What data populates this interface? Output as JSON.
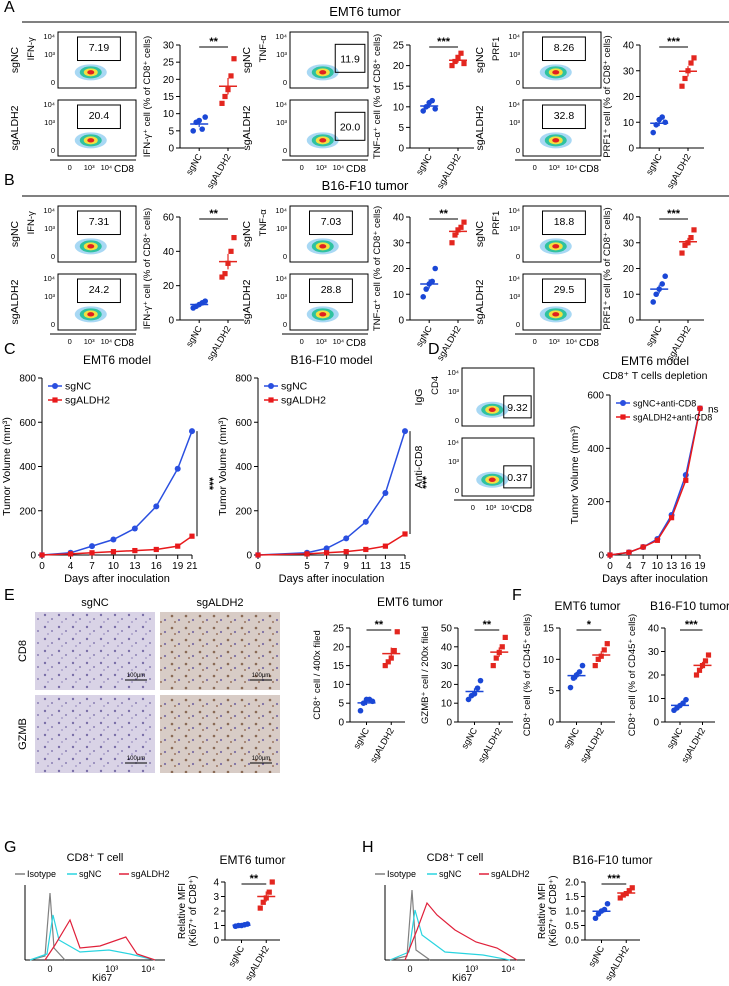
{
  "panel_A": {
    "letter": "A",
    "title": "EMT6 tumor",
    "groups": [
      {
        "flow": {
          "y_label": "IFN-γ",
          "x_label": "CD8",
          "rows": [
            "sgNC",
            "sgALDH2"
          ],
          "gates": [
            "7.19",
            "20.4"
          ],
          "yticks": [
            "10⁴",
            "10³",
            "0"
          ],
          "xticks": [
            "0",
            "10³",
            "10⁴"
          ]
        },
        "chart": {
          "type": "dot",
          "y_label": "IFN-γ⁺ cell (% of CD8⁺ cells)",
          "categories": [
            "sgNC",
            "sgALDH2"
          ],
          "colors": [
            "#1a47d6",
            "#e3261f"
          ],
          "values": [
            [
              5,
              7.5,
              8,
              5.5,
              9
            ],
            [
              13,
              15,
              17,
              21,
              26
            ]
          ],
          "means": [
            7,
            18
          ],
          "errors": [
            0.9,
            2.4
          ],
          "ylim": [
            0,
            30
          ],
          "yticks": [
            0,
            5,
            10,
            15,
            20,
            25,
            30
          ],
          "significance": "**"
        }
      },
      {
        "flow": {
          "y_label": "TNF-α",
          "x_label": "CD8",
          "rows": [
            "sgNC",
            "sgALDH2"
          ],
          "gates": [
            "11.9",
            "20.0"
          ],
          "yticks": [
            "10⁴",
            "10³",
            "0"
          ],
          "xticks": [
            "0",
            "10³",
            "10⁴"
          ]
        },
        "chart": {
          "type": "dot",
          "y_label": "TNF-α⁺ cell (% of CD8⁺ cells)",
          "categories": [
            "sgNC",
            "sgALDH2"
          ],
          "colors": [
            "#1a47d6",
            "#e3261f"
          ],
          "values": [
            [
              9,
              10,
              11,
              11.5,
              9.5
            ],
            [
              20,
              21,
              22,
              23,
              20.5
            ]
          ],
          "means": [
            10.2,
            21.3
          ],
          "errors": [
            0.5,
            0.6
          ],
          "ylim": [
            0,
            25
          ],
          "yticks": [
            0,
            5,
            10,
            15,
            20,
            25
          ],
          "significance": "***"
        }
      },
      {
        "flow": {
          "y_label": "PRF1",
          "x_label": "CD8",
          "rows": [
            "sgNC",
            "sgALDH2"
          ],
          "gates": [
            "8.26",
            "32.8"
          ],
          "yticks": [
            "10⁴",
            "10³",
            "0"
          ],
          "xticks": [
            "0",
            "10³",
            "10⁴"
          ]
        },
        "chart": {
          "type": "dot",
          "y_label": "PRF1⁺ cell (% of CD8⁺ cells)",
          "categories": [
            "sgNC",
            "sgALDH2"
          ],
          "colors": [
            "#1a47d6",
            "#e3261f"
          ],
          "values": [
            [
              6,
              9,
              11,
              12,
              10
            ],
            [
              24,
              27,
              30,
              33,
              35
            ]
          ],
          "means": [
            9.6,
            29.8
          ],
          "errors": [
            1.1,
            2
          ],
          "ylim": [
            0,
            40
          ],
          "yticks": [
            0,
            10,
            20,
            30,
            40
          ],
          "significance": "***"
        }
      }
    ]
  },
  "panel_B": {
    "letter": "B",
    "title": "B16-F10 tumor",
    "groups": [
      {
        "flow": {
          "y_label": "IFN-γ",
          "x_label": "CD8",
          "rows": [
            "sgNC",
            "sgALDH2"
          ],
          "gates": [
            "7.31",
            "24.2"
          ],
          "yticks": [
            "10⁴",
            "10³",
            "0"
          ],
          "xticks": [
            "0",
            "10³",
            "10⁴"
          ]
        },
        "chart": {
          "type": "dot",
          "y_label": "IFN-γ⁺ cell (% of CD8⁺ cells)",
          "categories": [
            "sgNC",
            "sgALDH2"
          ],
          "colors": [
            "#1a47d6",
            "#e3261f"
          ],
          "values": [
            [
              7,
              8,
              9,
              10,
              11
            ],
            [
              25,
              27,
              33,
              40,
              48
            ]
          ],
          "means": [
            9,
            34
          ],
          "errors": [
            0.8,
            4.5
          ],
          "ylim": [
            0,
            60
          ],
          "yticks": [
            0,
            20,
            40,
            60
          ],
          "significance": "**"
        }
      },
      {
        "flow": {
          "y_label": "TNF-α",
          "x_label": "CD8",
          "rows": [
            "sgNC",
            "sgALDH2"
          ],
          "gates": [
            "7.03",
            "28.8"
          ],
          "yticks": [
            "10⁴",
            "10³",
            "0"
          ],
          "xticks": [
            "0",
            "10³",
            "10⁴"
          ]
        },
        "chart": {
          "type": "dot",
          "y_label": "TNF-α⁺ cell (% of CD8⁺ cells)",
          "categories": [
            "sgNC",
            "sgALDH2"
          ],
          "colors": [
            "#1a47d6",
            "#e3261f"
          ],
          "values": [
            [
              9,
              12,
              14,
              15,
              20
            ],
            [
              30,
              33,
              35,
              36,
              38
            ]
          ],
          "means": [
            14,
            34.4
          ],
          "errors": [
            1.8,
            1.4
          ],
          "ylim": [
            0,
            40
          ],
          "yticks": [
            0,
            10,
            20,
            30,
            40
          ],
          "significance": "**"
        }
      },
      {
        "flow": {
          "y_label": "PRF1",
          "x_label": "CD8",
          "rows": [
            "sgNC",
            "sgALDH2"
          ],
          "gates": [
            "18.8",
            "29.5"
          ],
          "yticks": [
            "10⁴",
            "10³",
            "0"
          ],
          "xticks": [
            "0",
            "10³",
            "10⁴"
          ]
        },
        "chart": {
          "type": "dot",
          "y_label": "PRF1⁺ cell (% of CD8⁺ cells)",
          "categories": [
            "sgNC",
            "sgALDH2"
          ],
          "colors": [
            "#1a47d6",
            "#e3261f"
          ],
          "values": [
            [
              7,
              10,
              12,
              14,
              17
            ],
            [
              26,
              29,
              30,
              32,
              35
            ]
          ],
          "means": [
            12,
            30.4
          ],
          "errors": [
            1.7,
            1.5
          ],
          "ylim": [
            0,
            40
          ],
          "yticks": [
            0,
            10,
            20,
            30,
            40
          ],
          "significance": "***"
        }
      }
    ]
  },
  "panel_C": {
    "letter": "C",
    "charts": [
      {
        "type": "line",
        "title": "EMT6 model",
        "y_label": "Tumor Volume (mm³)",
        "x_label": "Days after inoculation",
        "x": [
          0,
          4,
          7,
          10,
          13,
          16,
          19,
          21
        ],
        "xlim": [
          0,
          21
        ],
        "xticks": [
          0,
          4,
          7,
          10,
          13,
          16,
          19,
          21
        ],
        "ylim": [
          0,
          800
        ],
        "yticks": [
          0,
          200,
          400,
          600,
          800
        ],
        "significance": "***",
        "series": [
          {
            "name": "sgNC",
            "color": "#2a4fe0",
            "values": [
              0,
              10,
              40,
              70,
              120,
              220,
              390,
              560
            ]
          },
          {
            "name": "sgALDH2",
            "color": "#e8191b",
            "values": [
              0,
              5,
              10,
              15,
              20,
              25,
              40,
              85
            ]
          }
        ]
      },
      {
        "type": "line",
        "title": "B16-F10 model",
        "y_label": "Tumor Volume (mm³)",
        "x_label": "Days after inoculation",
        "x": [
          0,
          5,
          7,
          9,
          11,
          13,
          15
        ],
        "xlim": [
          0,
          15
        ],
        "xticks": [
          0,
          5,
          7,
          9,
          11,
          13,
          15
        ],
        "ylim": [
          0,
          800
        ],
        "yticks": [
          0,
          200,
          400,
          600,
          800
        ],
        "significance": "***",
        "series": [
          {
            "name": "sgNC",
            "color": "#2a4fe0",
            "values": [
              0,
              10,
              30,
              75,
              150,
              280,
              560
            ]
          },
          {
            "name": "sgALDH2",
            "color": "#e8191b",
            "values": [
              0,
              5,
              10,
              15,
              25,
              40,
              95
            ]
          }
        ]
      }
    ]
  },
  "panel_D": {
    "letter": "D",
    "flow": {
      "y_label": "CD4",
      "x_label": "CD8",
      "rows": [
        "IgG",
        "Anti-CD8"
      ],
      "gates": [
        "9.32",
        "0.37"
      ],
      "yticks": [
        "10⁴",
        "10³",
        "0"
      ],
      "xticks": [
        "0",
        "10³",
        "10⁴"
      ]
    },
    "chart": {
      "type": "line",
      "title": "EMT6 model",
      "subtitle": "CD8⁺ T cells depletion",
      "y_label": "Tumor Volume (mm³)",
      "x_label": "Days after inoculation",
      "x": [
        0,
        4,
        7,
        10,
        13,
        16,
        19
      ],
      "xlim": [
        0,
        19
      ],
      "xticks": [
        0,
        4,
        7,
        10,
        13,
        16,
        19
      ],
      "ylim": [
        0,
        600
      ],
      "yticks": [
        0,
        200,
        400,
        600
      ],
      "significance": "ns",
      "series": [
        {
          "name": "sgNC+anti-CD8",
          "color": "#2a4fe0",
          "values": [
            0,
            10,
            30,
            60,
            150,
            300,
            550
          ]
        },
        {
          "name": "sgALDH2+anti-CD8",
          "color": "#e8191b",
          "values": [
            0,
            10,
            30,
            55,
            140,
            280,
            550
          ]
        }
      ]
    }
  },
  "panel_E": {
    "letter": "E",
    "columns": [
      "sgNC",
      "sgALDH2"
    ],
    "rows": [
      "CD8",
      "GZMB"
    ],
    "scale_bar": "100μm",
    "title": "EMT6 tumor",
    "charts": [
      {
        "type": "dot",
        "y_label": "CD8⁺ cell / 400x filed",
        "categories": [
          "sgNC",
          "sgALDH2"
        ],
        "colors": [
          "#1a47d6",
          "#e3261f"
        ],
        "values": [
          [
            3,
            5,
            6,
            6,
            5.5
          ],
          [
            15,
            16,
            17,
            19,
            24
          ]
        ],
        "means": [
          5.1,
          18.2
        ],
        "errors": [
          0.6,
          1.6
        ],
        "ylim": [
          0,
          25
        ],
        "yticks": [
          0,
          5,
          10,
          15,
          20,
          25
        ],
        "significance": "**"
      },
      {
        "type": "dot",
        "y_label": "GZMB⁺ cell / 200x filed",
        "categories": [
          "sgNC",
          "sgALDH2"
        ],
        "colors": [
          "#1a47d6",
          "#e3261f"
        ],
        "values": [
          [
            12,
            14,
            15,
            18,
            22
          ],
          [
            30,
            34,
            37,
            40,
            45
          ]
        ],
        "means": [
          16.2,
          37.2
        ],
        "errors": [
          1.7,
          2.5
        ],
        "ylim": [
          0,
          50
        ],
        "yticks": [
          0,
          10,
          20,
          30,
          40,
          50
        ],
        "significance": "**"
      }
    ]
  },
  "panel_F": {
    "letter": "F",
    "charts": [
      {
        "type": "dot",
        "title": "EMT6 tumor",
        "y_label": "CD8⁺ cell (% of CD45⁺ cells)",
        "categories": [
          "sgNC",
          "sgALDH2"
        ],
        "colors": [
          "#1a47d6",
          "#e3261f"
        ],
        "values": [
          [
            5.5,
            7,
            7.5,
            8,
            9
          ],
          [
            9,
            10,
            10.5,
            11.5,
            12.5
          ]
        ],
        "means": [
          7.4,
          10.7
        ],
        "errors": [
          0.6,
          0.6
        ],
        "ylim": [
          0,
          15
        ],
        "yticks": [
          0,
          5,
          10,
          15
        ],
        "significance": "*"
      },
      {
        "type": "dot",
        "title": "B16-F10 tumor",
        "y_label": "CD8⁺ cell (% of CD45⁺ cells)",
        "categories": [
          "sgNC",
          "sgALDH2"
        ],
        "colors": [
          "#1a47d6",
          "#e3261f"
        ],
        "values": [
          [
            5,
            6,
            7,
            8,
            9.5
          ],
          [
            20,
            22,
            24,
            26,
            28.5
          ]
        ],
        "means": [
          7.1,
          24.1
        ],
        "errors": [
          0.8,
          1.5
        ],
        "ylim": [
          0,
          40
        ],
        "yticks": [
          0,
          10,
          20,
          30,
          40
        ],
        "significance": "***"
      }
    ]
  },
  "panel_G": {
    "letter": "G",
    "histogram": {
      "title": "CD8⁺ T cell",
      "legend": [
        {
          "name": "Isotype",
          "color": "#808080"
        },
        {
          "name": "sgNC",
          "color": "#2ad4e0"
        },
        {
          "name": "sgALDH2",
          "color": "#e0203a"
        }
      ],
      "x_label": "Ki67",
      "xticks": [
        "0",
        "10³",
        "10⁴"
      ]
    },
    "chart": {
      "type": "dot",
      "title": "EMT6 tumor",
      "y_label": "Relative MFI",
      "y_label_2": "(Ki67⁺ of CD8⁺)",
      "categories": [
        "sgNC",
        "sgALDH2"
      ],
      "colors": [
        "#1a47d6",
        "#e3261f"
      ],
      "values": [
        [
          0.95,
          1,
          1,
          1.05,
          1.1
        ],
        [
          2.2,
          2.6,
          2.9,
          3.3,
          4
        ]
      ],
      "means": [
        1.02,
        3
      ],
      "errors": [
        0.03,
        0.35
      ],
      "ylim": [
        0,
        4
      ],
      "yticks": [
        0,
        1,
        2,
        3,
        4
      ],
      "significance": "**"
    }
  },
  "panel_H": {
    "letter": "H",
    "histogram": {
      "title": "CD8⁺ T cell",
      "legend": [
        {
          "name": "Isotype",
          "color": "#808080"
        },
        {
          "name": "sgNC",
          "color": "#2ad4e0"
        },
        {
          "name": "sgALDH2",
          "color": "#e0203a"
        }
      ],
      "x_label": "Ki67",
      "xticks": [
        "0",
        "10³",
        "10⁴"
      ]
    },
    "chart": {
      "type": "dot",
      "title": "B16-F10 tumor",
      "y_label": "Relative MFI",
      "y_label_2": "(Ki67⁺ of CD8⁺)",
      "categories": [
        "sgNC",
        "sgALDH2"
      ],
      "colors": [
        "#1a47d6",
        "#e3261f"
      ],
      "values": [
        [
          0.75,
          0.9,
          1,
          1.05,
          1.25
        ],
        [
          1.45,
          1.55,
          1.6,
          1.7,
          1.8
        ]
      ],
      "means": [
        0.99,
        1.62
      ],
      "errors": [
        0.08,
        0.06
      ],
      "ylim": [
        0,
        2
      ],
      "yticks": [
        {
          "value": 0,
          "label": "0.0"
        },
        0.5,
        {
          "value": 1,
          "label": "1.0"
        },
        1.5,
        {
          "value": 2,
          "label": "2.0"
        }
      ],
      "significance": "***"
    }
  }
}
